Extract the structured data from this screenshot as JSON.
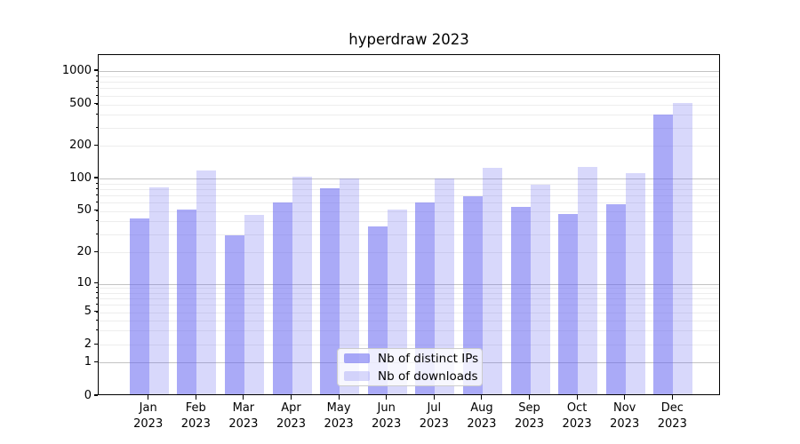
{
  "title": "hyperdraw 2023",
  "colors": {
    "bar_distinct_ips": "rgba(100,100,240,0.55)",
    "bar_downloads": "rgba(100,100,240,0.25)",
    "major_grid": "#c3c3c3",
    "minor_grid": "#ededed",
    "spine": "#000000",
    "legend_border": "#cccccc"
  },
  "y_axis": {
    "tick_values": [
      0,
      1,
      2,
      5,
      10,
      20,
      50,
      100,
      200,
      500,
      1000
    ],
    "tick_labels": [
      "0",
      "1",
      "2",
      "5",
      "10",
      "20",
      "50",
      "100",
      "200",
      "500",
      "1000"
    ],
    "major_grid_values": [
      1,
      10,
      100,
      1000
    ],
    "minor_grid_values": [
      2,
      3,
      4,
      5,
      6,
      7,
      8,
      9,
      20,
      30,
      40,
      50,
      60,
      70,
      80,
      90,
      200,
      300,
      400,
      500,
      600,
      700,
      800,
      900
    ]
  },
  "x_axis": {
    "months": [
      "Jan",
      "Feb",
      "Mar",
      "Apr",
      "May",
      "Jun",
      "Jul",
      "Aug",
      "Sep",
      "Oct",
      "Nov",
      "Dec"
    ],
    "year": "2023"
  },
  "chart_data": {
    "type": "bar",
    "title": "hyperdraw 2023",
    "categories": [
      "Jan 2023",
      "Feb 2023",
      "Mar 2023",
      "Apr 2023",
      "May 2023",
      "Jun 2023",
      "Jul 2023",
      "Aug 2023",
      "Sep 2023",
      "Oct 2023",
      "Nov 2023",
      "Dec 2023"
    ],
    "series": [
      {
        "name": "Nb of distinct IPs",
        "color": "rgba(100,100,240,0.55)",
        "values": [
          41,
          50,
          28,
          58,
          78,
          34,
          58,
          66,
          53,
          45,
          56,
          385
        ]
      },
      {
        "name": "Nb of downloads",
        "color": "rgba(100,100,240,0.25)",
        "values": [
          80,
          115,
          44,
          100,
          96,
          50,
          96,
          120,
          84,
          123,
          108,
          500
        ]
      }
    ],
    "xlabel": "",
    "ylabel": "",
    "yscale": "asinh (log-like axis that includes 0)",
    "ytick_values": [
      0,
      1,
      2,
      5,
      10,
      20,
      50,
      100,
      200,
      500,
      1000
    ],
    "ylim": [
      0,
      1400
    ],
    "grid": true,
    "legend_position": "lower center"
  }
}
